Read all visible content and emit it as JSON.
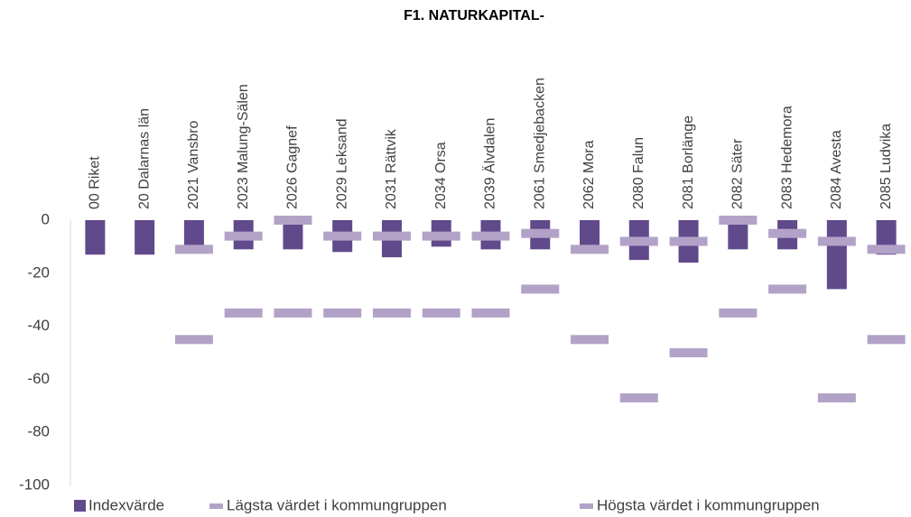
{
  "chart_data": {
    "type": "bar",
    "title": "F1. NATURKAPITAL-",
    "categories": [
      "00 Riket",
      "20 Dalarnas län",
      "2021 Vansbro",
      "2023 Malung-Sälen",
      "2026 Gagnef",
      "2029 Leksand",
      "2031 Rättvik",
      "2034 Orsa",
      "2039 Älvdalen",
      "2061 Smedjebacken",
      "2062 Mora",
      "2080 Falun",
      "2081 Borlänge",
      "2082 Säter",
      "2083 Hedemora",
      "2084 Avesta",
      "2085 Ludvika"
    ],
    "series": [
      {
        "name": "Indexvärde",
        "type": "bar",
        "color": "#604a8b",
        "values": [
          -13,
          -13,
          -11,
          -11,
          -11,
          -12,
          -14,
          -10,
          -11,
          -11,
          -11,
          -15,
          -16,
          -11,
          -11,
          -26,
          -13
        ]
      },
      {
        "name": "Lägsta värdet i kommungruppen",
        "type": "dash",
        "color": "#b3a2c7",
        "values": [
          null,
          null,
          -45,
          -35,
          -35,
          -35,
          -35,
          -35,
          -35,
          -26,
          -45,
          -67,
          -50,
          -35,
          -26,
          -67,
          -45
        ]
      },
      {
        "name": "Högsta värdet i kommungruppen",
        "type": "dash",
        "color": "#b3a2c7",
        "values": [
          null,
          null,
          -11,
          -6,
          0,
          -6,
          -6,
          -6,
          -6,
          -5,
          -11,
          -8,
          -8,
          0,
          -5,
          -8,
          -11
        ]
      }
    ],
    "ylim": [
      -100,
      0
    ],
    "yticks": [
      0,
      -20,
      -40,
      -60,
      -80,
      -100
    ],
    "grid": false
  }
}
